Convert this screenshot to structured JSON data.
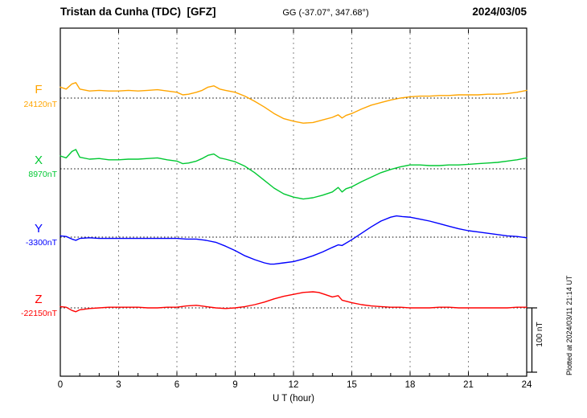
{
  "header": {
    "station_title": "Tristan da Cunha (TDC)  [GFZ]",
    "coords": "GG (-37.07°, 347.68°)",
    "date": "2024/03/05"
  },
  "footer": {
    "plotted_at": "Plotted at 2024/03/11 21:14 UT"
  },
  "chart_data": {
    "type": "line",
    "title": "Magnetogram Tristan da Cunha (TDC) [GFZ] 2024/03/05",
    "xlabel": "U T (hour)",
    "x_range": [
      0,
      24
    ],
    "x_ticks": [
      0,
      3,
      6,
      9,
      12,
      15,
      18,
      21,
      24
    ],
    "grid": "dashed vertical lines every 3 hours, dotted horizontal baseline per trace",
    "scale_bar_nT": 100,
    "scale_bar_label": "100 nT",
    "series": [
      {
        "name": "F",
        "baseline_label": "24120nT",
        "baseline_nT": 24120,
        "color": "#ffa500",
        "points": [
          [
            0,
            17
          ],
          [
            0.3,
            14
          ],
          [
            0.6,
            22
          ],
          [
            0.8,
            24
          ],
          [
            1,
            14
          ],
          [
            1.5,
            11
          ],
          [
            2,
            12
          ],
          [
            2.5,
            11
          ],
          [
            3,
            11
          ],
          [
            3.5,
            12
          ],
          [
            4,
            11
          ],
          [
            4.5,
            12
          ],
          [
            5,
            13
          ],
          [
            5.5,
            11
          ],
          [
            6,
            9
          ],
          [
            6.3,
            5
          ],
          [
            6.6,
            6
          ],
          [
            7,
            9
          ],
          [
            7.3,
            12
          ],
          [
            7.6,
            17
          ],
          [
            7.9,
            19
          ],
          [
            8.2,
            14
          ],
          [
            8.5,
            12
          ],
          [
            9,
            9
          ],
          [
            9.5,
            3
          ],
          [
            10,
            -5
          ],
          [
            10.5,
            -14
          ],
          [
            11,
            -24
          ],
          [
            11.5,
            -32
          ],
          [
            12,
            -36
          ],
          [
            12.5,
            -39
          ],
          [
            13,
            -38
          ],
          [
            13.5,
            -34
          ],
          [
            14,
            -30
          ],
          [
            14.3,
            -26
          ],
          [
            14.5,
            -31
          ],
          [
            14.7,
            -27
          ],
          [
            15,
            -24
          ],
          [
            15.5,
            -17
          ],
          [
            16,
            -11
          ],
          [
            16.5,
            -7
          ],
          [
            17,
            -3
          ],
          [
            17.5,
            0
          ],
          [
            18,
            2
          ],
          [
            18.5,
            3
          ],
          [
            19,
            3
          ],
          [
            19.5,
            4
          ],
          [
            20,
            4
          ],
          [
            20.5,
            5
          ],
          [
            21,
            5
          ],
          [
            21.5,
            5
          ],
          [
            22,
            6
          ],
          [
            22.5,
            6
          ],
          [
            23,
            7
          ],
          [
            23.5,
            9
          ],
          [
            24,
            12
          ]
        ]
      },
      {
        "name": "X",
        "baseline_label": "8970nT",
        "baseline_nT": 8970,
        "color": "#00c832",
        "points": [
          [
            0,
            20
          ],
          [
            0.3,
            17
          ],
          [
            0.6,
            27
          ],
          [
            0.8,
            30
          ],
          [
            1,
            18
          ],
          [
            1.5,
            15
          ],
          [
            2,
            16
          ],
          [
            2.5,
            14
          ],
          [
            3,
            14
          ],
          [
            3.5,
            15
          ],
          [
            4,
            15
          ],
          [
            4.5,
            16
          ],
          [
            5,
            17
          ],
          [
            5.5,
            14
          ],
          [
            6,
            12
          ],
          [
            6.3,
            8
          ],
          [
            6.6,
            9
          ],
          [
            7,
            12
          ],
          [
            7.3,
            16
          ],
          [
            7.6,
            21
          ],
          [
            7.9,
            23
          ],
          [
            8.2,
            17
          ],
          [
            8.5,
            15
          ],
          [
            9,
            11
          ],
          [
            9.5,
            4
          ],
          [
            10,
            -6
          ],
          [
            10.5,
            -18
          ],
          [
            11,
            -30
          ],
          [
            11.5,
            -39
          ],
          [
            12,
            -44
          ],
          [
            12.5,
            -47
          ],
          [
            13,
            -45
          ],
          [
            13.5,
            -41
          ],
          [
            14,
            -36
          ],
          [
            14.3,
            -29
          ],
          [
            14.5,
            -36
          ],
          [
            14.7,
            -31
          ],
          [
            15,
            -28
          ],
          [
            15.5,
            -20
          ],
          [
            16,
            -13
          ],
          [
            16.5,
            -6
          ],
          [
            17,
            -1
          ],
          [
            17.5,
            3
          ],
          [
            18,
            6
          ],
          [
            18.5,
            6
          ],
          [
            19,
            5
          ],
          [
            19.5,
            5
          ],
          [
            20,
            6
          ],
          [
            20.5,
            6
          ],
          [
            21,
            7
          ],
          [
            21.5,
            8
          ],
          [
            22,
            9
          ],
          [
            22.5,
            10
          ],
          [
            23,
            12
          ],
          [
            23.5,
            14
          ],
          [
            24,
            17
          ]
        ]
      },
      {
        "name": "Y",
        "baseline_label": "-3300nT",
        "baseline_nT": -3300,
        "color": "#0000ff",
        "points": [
          [
            0,
            2
          ],
          [
            0.3,
            1
          ],
          [
            0.6,
            -3
          ],
          [
            0.8,
            -5
          ],
          [
            1,
            -2
          ],
          [
            1.5,
            -1
          ],
          [
            2,
            -2
          ],
          [
            2.5,
            -2
          ],
          [
            3,
            -2
          ],
          [
            3.5,
            -2
          ],
          [
            4,
            -2
          ],
          [
            4.5,
            -2
          ],
          [
            5,
            -2
          ],
          [
            5.5,
            -2
          ],
          [
            6,
            -2
          ],
          [
            6.5,
            -3
          ],
          [
            7,
            -3
          ],
          [
            7.5,
            -5
          ],
          [
            8,
            -8
          ],
          [
            8.5,
            -14
          ],
          [
            9,
            -21
          ],
          [
            9.5,
            -29
          ],
          [
            10,
            -35
          ],
          [
            10.5,
            -40
          ],
          [
            10.8,
            -42
          ],
          [
            11,
            -42
          ],
          [
            11.5,
            -40
          ],
          [
            12,
            -38
          ],
          [
            12.5,
            -34
          ],
          [
            13,
            -29
          ],
          [
            13.5,
            -23
          ],
          [
            14,
            -16
          ],
          [
            14.3,
            -12
          ],
          [
            14.5,
            -13
          ],
          [
            15,
            -4
          ],
          [
            15.5,
            6
          ],
          [
            16,
            16
          ],
          [
            16.5,
            25
          ],
          [
            17,
            31
          ],
          [
            17.3,
            33
          ],
          [
            17.6,
            32
          ],
          [
            18,
            31
          ],
          [
            18.5,
            28
          ],
          [
            19,
            25
          ],
          [
            19.5,
            21
          ],
          [
            20,
            17
          ],
          [
            20.5,
            13
          ],
          [
            21,
            10
          ],
          [
            21.5,
            8
          ],
          [
            22,
            6
          ],
          [
            22.5,
            4
          ],
          [
            23,
            2
          ],
          [
            23.5,
            1
          ],
          [
            24,
            -1
          ]
        ]
      },
      {
        "name": "Z",
        "baseline_label": "-22150nT",
        "baseline_nT": -22150,
        "color": "#ff0000",
        "points": [
          [
            0,
            2
          ],
          [
            0.3,
            1
          ],
          [
            0.6,
            -4
          ],
          [
            0.8,
            -6
          ],
          [
            1,
            -3
          ],
          [
            1.5,
            -1
          ],
          [
            2,
            0
          ],
          [
            2.5,
            1
          ],
          [
            3,
            1
          ],
          [
            3.5,
            1
          ],
          [
            4,
            1
          ],
          [
            4.5,
            0
          ],
          [
            5,
            0
          ],
          [
            5.5,
            1
          ],
          [
            6,
            1
          ],
          [
            6.5,
            3
          ],
          [
            7,
            4
          ],
          [
            7.5,
            2
          ],
          [
            8,
            0
          ],
          [
            8.5,
            -1
          ],
          [
            9,
            0
          ],
          [
            9.5,
            2
          ],
          [
            10,
            5
          ],
          [
            10.5,
            9
          ],
          [
            11,
            14
          ],
          [
            11.5,
            18
          ],
          [
            12,
            21
          ],
          [
            12.5,
            24
          ],
          [
            13,
            25
          ],
          [
            13.3,
            24
          ],
          [
            13.6,
            21
          ],
          [
            14,
            17
          ],
          [
            14.3,
            19
          ],
          [
            14.5,
            12
          ],
          [
            15,
            8
          ],
          [
            15.5,
            5
          ],
          [
            16,
            3
          ],
          [
            16.5,
            2
          ],
          [
            17,
            1
          ],
          [
            17.5,
            1
          ],
          [
            18,
            0
          ],
          [
            18.5,
            0
          ],
          [
            19,
            0
          ],
          [
            19.5,
            1
          ],
          [
            20,
            1
          ],
          [
            20.5,
            0
          ],
          [
            21,
            0
          ],
          [
            21.5,
            0
          ],
          [
            22,
            0
          ],
          [
            22.5,
            0
          ],
          [
            23,
            0
          ],
          [
            23.5,
            1
          ],
          [
            24,
            1
          ]
        ]
      }
    ]
  }
}
